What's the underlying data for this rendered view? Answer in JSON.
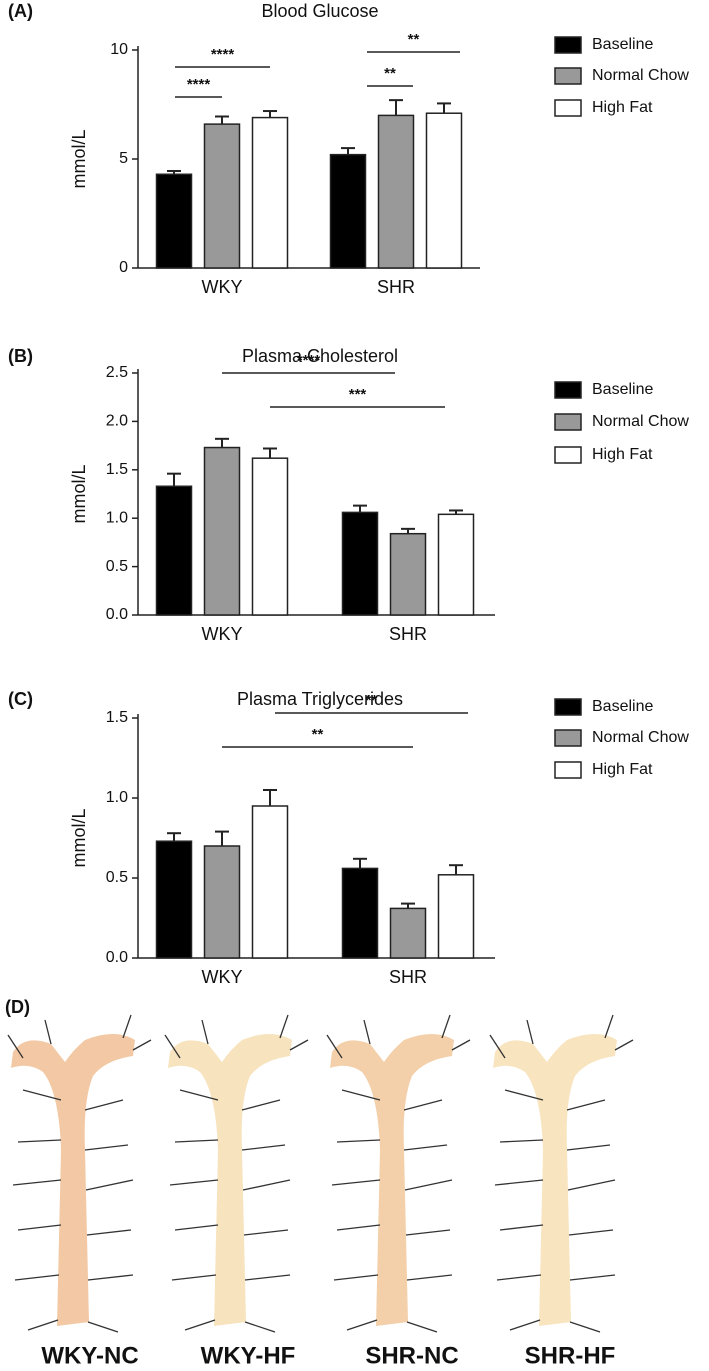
{
  "chart_data": [
    {
      "type": "bar",
      "panel_label": "(A)",
      "title": "Blood Glucose",
      "y_label": "mmol/L",
      "categories": [
        "WKY",
        "SHR"
      ],
      "series": [
        {
          "name": "Baseline",
          "color": "#000000",
          "values": [
            4.3,
            5.2
          ],
          "errors": [
            0.15,
            0.3
          ]
        },
        {
          "name": "Normal Chow",
          "color": "#999999",
          "values": [
            6.6,
            7.0
          ],
          "errors": [
            0.35,
            0.7
          ]
        },
        {
          "name": "High Fat",
          "color": "#ffffff",
          "values": [
            6.9,
            7.1
          ],
          "errors": [
            0.3,
            0.45
          ]
        }
      ],
      "ylim": [
        0,
        10
      ],
      "yticks": [
        0,
        5,
        10
      ],
      "annotations": [
        "****",
        "****",
        "**",
        "**"
      ]
    },
    {
      "type": "bar",
      "panel_label": "(B)",
      "title": "Plasma Cholesterol",
      "y_label": "mmol/L",
      "categories": [
        "WKY",
        "SHR"
      ],
      "series": [
        {
          "name": "Baseline",
          "color": "#000000",
          "values": [
            1.33,
            1.06
          ],
          "errors": [
            0.13,
            0.07
          ]
        },
        {
          "name": "Normal Chow",
          "color": "#999999",
          "values": [
            1.73,
            0.84
          ],
          "errors": [
            0.09,
            0.05
          ]
        },
        {
          "name": "High Fat",
          "color": "#ffffff",
          "values": [
            1.62,
            1.04
          ],
          "errors": [
            0.1,
            0.04
          ]
        }
      ],
      "ylim": [
        0,
        2.5
      ],
      "yticks": [
        {
          "value": 0,
          "label": "0.0"
        },
        0.5,
        {
          "value": 1,
          "label": "1.0"
        },
        1.5,
        {
          "value": 2,
          "label": "2.0"
        },
        2.5
      ],
      "annotations": [
        "****",
        "***"
      ]
    },
    {
      "type": "bar",
      "panel_label": "(C)",
      "title": "Plasma Triglycerides",
      "y_label": "mmol/L",
      "categories": [
        "WKY",
        "SHR"
      ],
      "series": [
        {
          "name": "Baseline",
          "color": "#000000",
          "values": [
            0.73,
            0.56
          ],
          "errors": [
            0.05,
            0.06
          ]
        },
        {
          "name": "Normal Chow",
          "color": "#999999",
          "values": [
            0.7,
            0.31
          ],
          "errors": [
            0.09,
            0.03
          ]
        },
        {
          "name": "High Fat",
          "color": "#ffffff",
          "values": [
            0.95,
            0.52
          ],
          "errors": [
            0.1,
            0.06
          ]
        }
      ],
      "ylim": [
        0,
        1.5
      ],
      "yticks": [
        {
          "value": 0,
          "label": "0.0"
        },
        0.5,
        {
          "value": 1,
          "label": "1.0"
        },
        1.5
      ],
      "annotations": [
        "**",
        "**"
      ]
    }
  ],
  "panel_d": {
    "label": "(D)",
    "captions": [
      "WKY-NC",
      "WKY-HF",
      "SHR-NC",
      "SHR-HF"
    ]
  }
}
